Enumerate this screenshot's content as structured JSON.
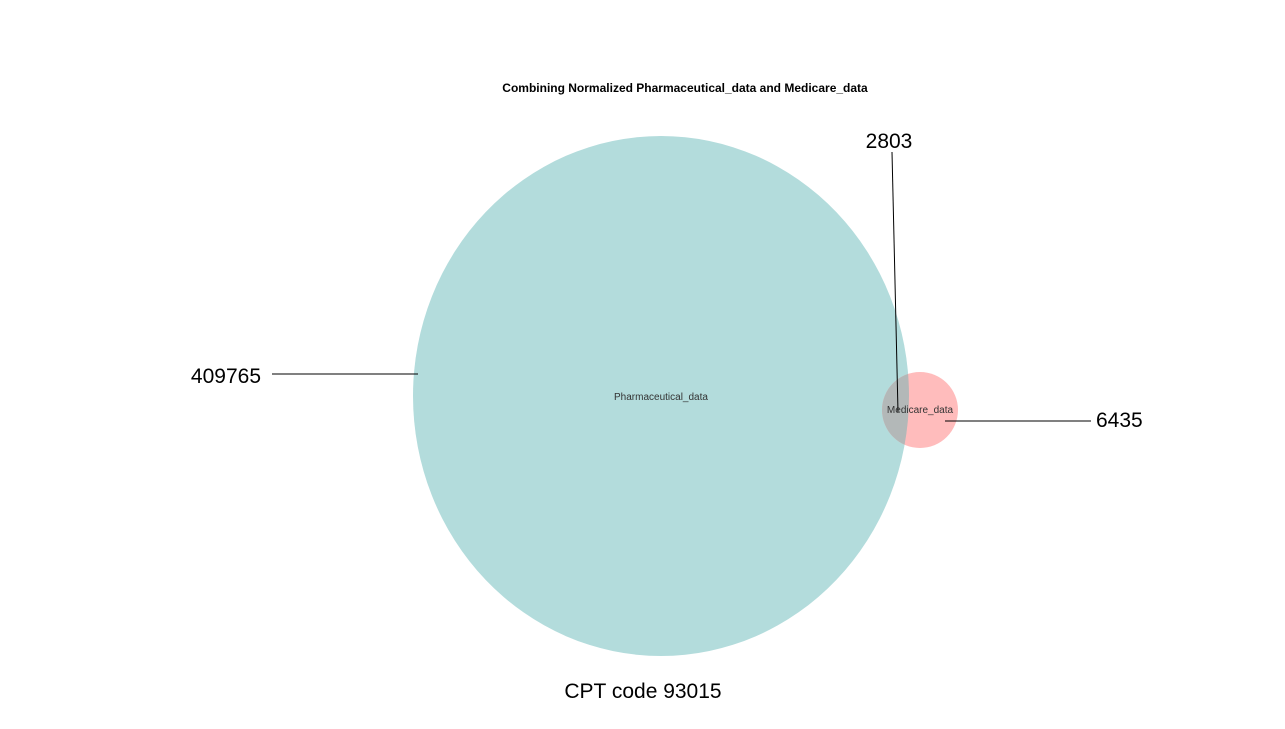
{
  "title": "Combining Normalized Pharmaceutical_data and Medicare_data",
  "caption": "CPT code 93015",
  "colors": {
    "pharmaceutical": "#b3dcdc",
    "medicare": "#ffbcbc",
    "overlap": "#b3b8b8"
  },
  "sets": [
    {
      "name": "Pharmaceutical_data",
      "only_count": "409765"
    },
    {
      "name": "Medicare_data",
      "only_count": "6435"
    }
  ],
  "intersection_count": "2803"
}
